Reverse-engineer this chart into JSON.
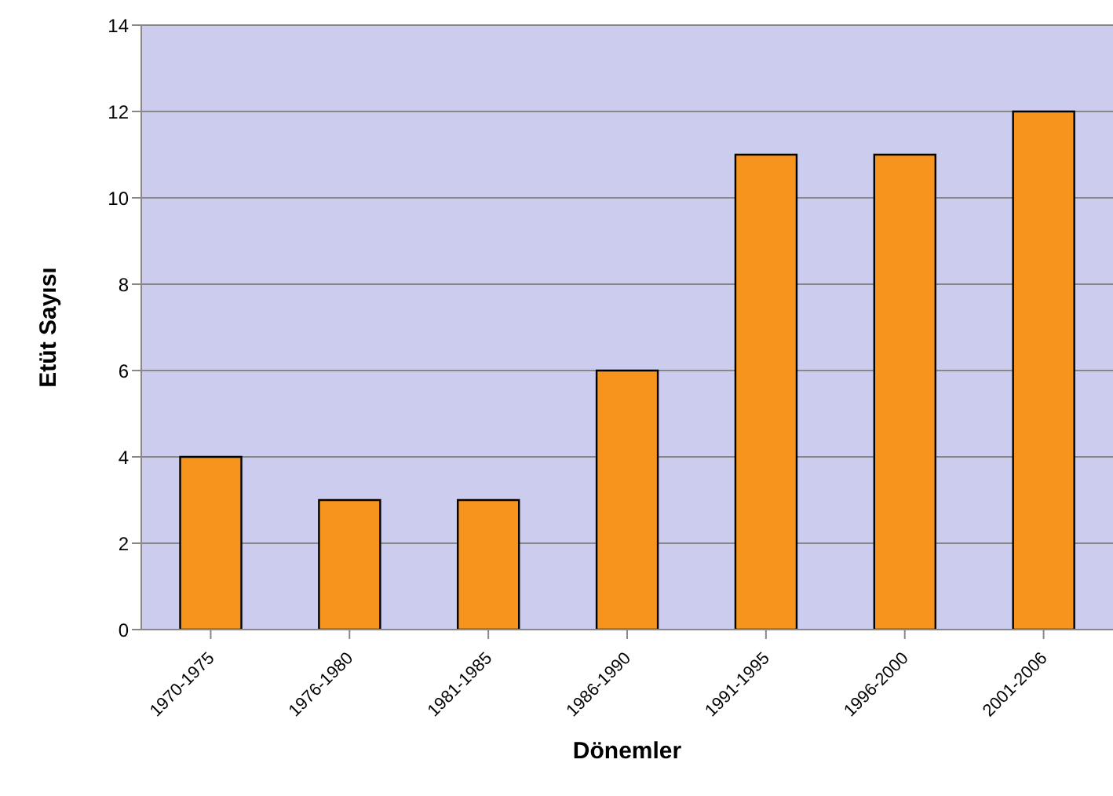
{
  "chart_data": {
    "type": "bar",
    "xlabel": "Dönemler",
    "ylabel": "Etüt Sayısı",
    "categories": [
      "1970-1975",
      "1976-1980",
      "1981-1985",
      "1986-1990",
      "1991-1995",
      "1996-2000",
      "2001-2006"
    ],
    "values": [
      4,
      3,
      3,
      6,
      11,
      11,
      12
    ],
    "color": "#f7941d",
    "ylim": [
      0,
      14
    ],
    "yticks": [
      0,
      2,
      4,
      6,
      8,
      10,
      12,
      14
    ],
    "grid": "y"
  }
}
